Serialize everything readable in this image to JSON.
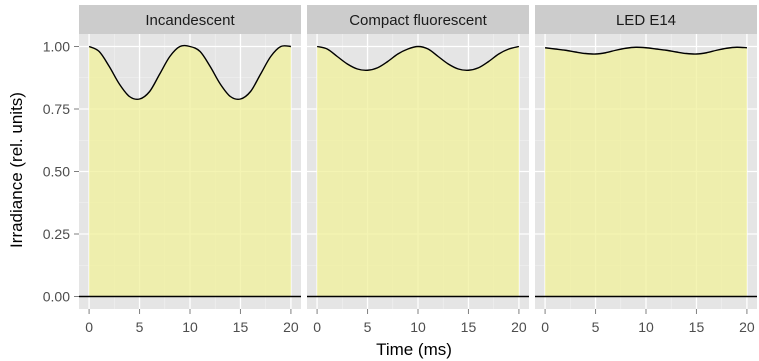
{
  "chart_data": {
    "type": "area",
    "xlabel": "Time (ms)",
    "ylabel": "Irradiance (rel. units)",
    "xlim": [
      -1,
      21
    ],
    "ylim": [
      -0.05,
      1.05
    ],
    "x_ticks": [
      0,
      5,
      10,
      15,
      20
    ],
    "x_tick_labels": [
      "0",
      "5",
      "10",
      "15",
      "20"
    ],
    "y_ticks": [
      0,
      0.25,
      0.5,
      0.75,
      1
    ],
    "y_tick_labels": [
      "0.00",
      "0.25",
      "0.50",
      "0.75",
      "1.00"
    ],
    "grid": true,
    "baseline": 0,
    "x": [
      0,
      1,
      2,
      3,
      4,
      5,
      6,
      7,
      8,
      9,
      10,
      11,
      12,
      13,
      14,
      15,
      16,
      17,
      18,
      19,
      20
    ],
    "panels": [
      {
        "name": "Incandescent",
        "values": [
          1.0,
          0.98,
          0.92,
          0.85,
          0.8,
          0.79,
          0.82,
          0.89,
          0.96,
          1.0,
          1.0,
          0.98,
          0.92,
          0.85,
          0.8,
          0.79,
          0.82,
          0.89,
          0.96,
          1.0,
          1.0
        ]
      },
      {
        "name": "Compact fluorescent",
        "values": [
          1.0,
          0.99,
          0.96,
          0.93,
          0.91,
          0.905,
          0.915,
          0.94,
          0.97,
          0.99,
          1.0,
          0.99,
          0.96,
          0.93,
          0.91,
          0.905,
          0.915,
          0.94,
          0.97,
          0.99,
          1.0
        ]
      },
      {
        "name": "LED E14",
        "values": [
          0.995,
          0.99,
          0.985,
          0.978,
          0.972,
          0.97,
          0.975,
          0.985,
          0.993,
          0.997,
          0.995,
          0.99,
          0.985,
          0.978,
          0.972,
          0.97,
          0.975,
          0.985,
          0.993,
          0.997,
          0.995
        ]
      }
    ],
    "colors": {
      "panel_background": "#e5e5e5",
      "strip_background": "#cccccc",
      "grid_major": "#ffffff",
      "grid_minor": "#f2f2f2",
      "area_fill": "#f0f099",
      "line": "#000000"
    }
  }
}
